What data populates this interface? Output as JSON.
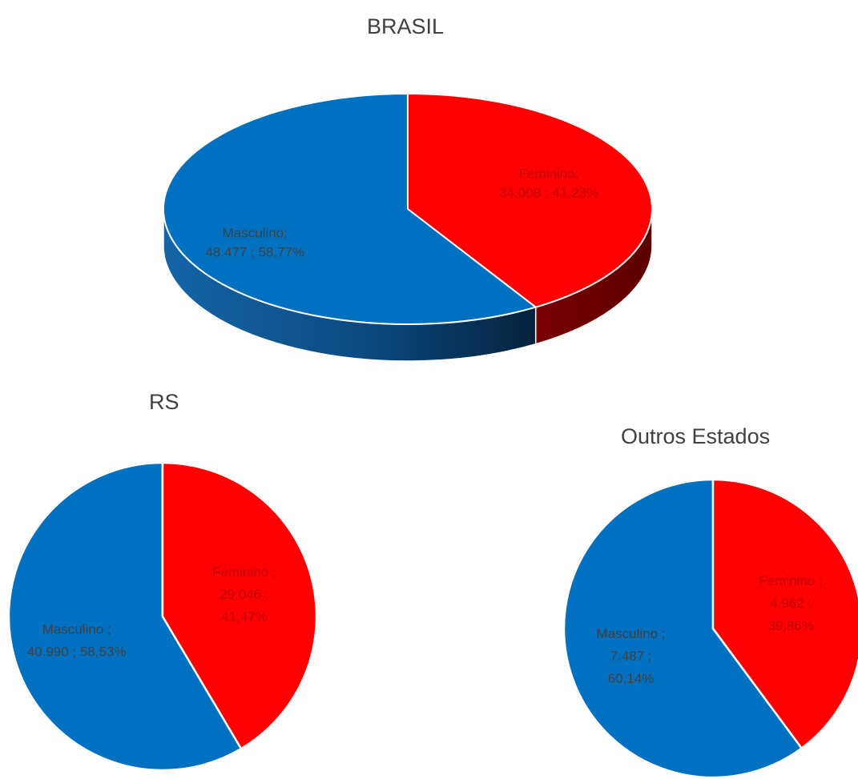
{
  "colors": {
    "masculino": "#0070C0",
    "feminino": "#FF0000",
    "label_on_blue": "#3F3F3F",
    "label_on_red": "#C00000"
  },
  "chart_data": [
    {
      "type": "pie",
      "style": "3d",
      "title": "BRASIL",
      "categories": [
        "Masculino",
        "Feminino"
      ],
      "values": [
        48477,
        34008
      ],
      "percentages": [
        58.77,
        41.23
      ],
      "labels": [
        {
          "lines": [
            "Masculino;",
            "48.477 ; 58,77%"
          ]
        },
        {
          "lines": [
            "Feminino;",
            "34.008 ; 41,23%"
          ]
        }
      ]
    },
    {
      "type": "pie",
      "title": "RS",
      "categories": [
        "Masculino",
        "Feminino"
      ],
      "values": [
        40990,
        29046
      ],
      "percentages": [
        58.53,
        41.47
      ],
      "labels": [
        {
          "lines": [
            "Masculino ;",
            "40.990 ; 58,53%"
          ]
        },
        {
          "lines": [
            "Feminino ;",
            "29.046 ;",
            "41,47%"
          ]
        }
      ]
    },
    {
      "type": "pie",
      "title": "Outros Estados",
      "categories": [
        "Masculino",
        "Feminino"
      ],
      "values": [
        7487,
        4962
      ],
      "percentages": [
        60.14,
        39.86
      ],
      "labels": [
        {
          "lines": [
            "Masculino ;",
            "7.487 ;",
            "60,14%"
          ]
        },
        {
          "lines": [
            "Feminino ;",
            "4.962 ;",
            "39,86%"
          ]
        }
      ]
    }
  ]
}
